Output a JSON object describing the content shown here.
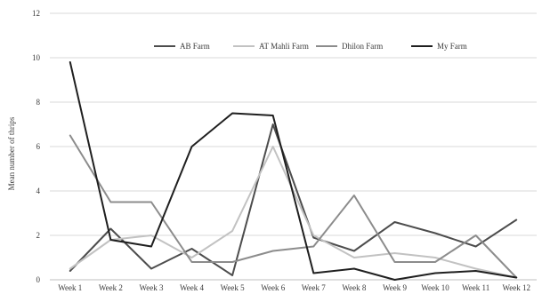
{
  "chart_data": {
    "type": "line",
    "title": "",
    "xlabel": "",
    "ylabel": "Mean number of thrips",
    "ylim": [
      0,
      12
    ],
    "yticks": [
      0,
      2,
      4,
      6,
      8,
      10,
      12
    ],
    "grid": true,
    "legend_position": "top-right",
    "categories": [
      "Week 1",
      "Week 2",
      "Week 3",
      "Week 4",
      "Week 5",
      "Week 6",
      "Week 7",
      "Week 8",
      "Week 9",
      "Week 10",
      "Week 11",
      "Week 12"
    ],
    "series": [
      {
        "name": "AB Farm",
        "color": "#4d4d4d",
        "values": [
          0.4,
          2.3,
          0.5,
          1.4,
          0.2,
          7.0,
          1.9,
          1.3,
          2.6,
          2.1,
          1.5,
          2.7
        ]
      },
      {
        "name": "AT Mahli Farm",
        "color": "#c2c2c2",
        "values": [
          0.5,
          1.8,
          2.0,
          1.0,
          2.2,
          6.0,
          2.0,
          1.0,
          1.2,
          1.0,
          0.5,
          0.1
        ]
      },
      {
        "name": "Dhilon Farm",
        "color": "#8c8c8c",
        "values": [
          6.5,
          3.5,
          3.5,
          0.8,
          0.8,
          1.3,
          1.5,
          3.8,
          0.8,
          0.8,
          2.0,
          0.1
        ]
      },
      {
        "name": "My Farm",
        "color": "#1f1f1f",
        "values": [
          9.8,
          1.8,
          1.5,
          6.0,
          7.5,
          7.4,
          0.3,
          0.5,
          0.0,
          0.3,
          0.4,
          0.1
        ]
      }
    ]
  }
}
